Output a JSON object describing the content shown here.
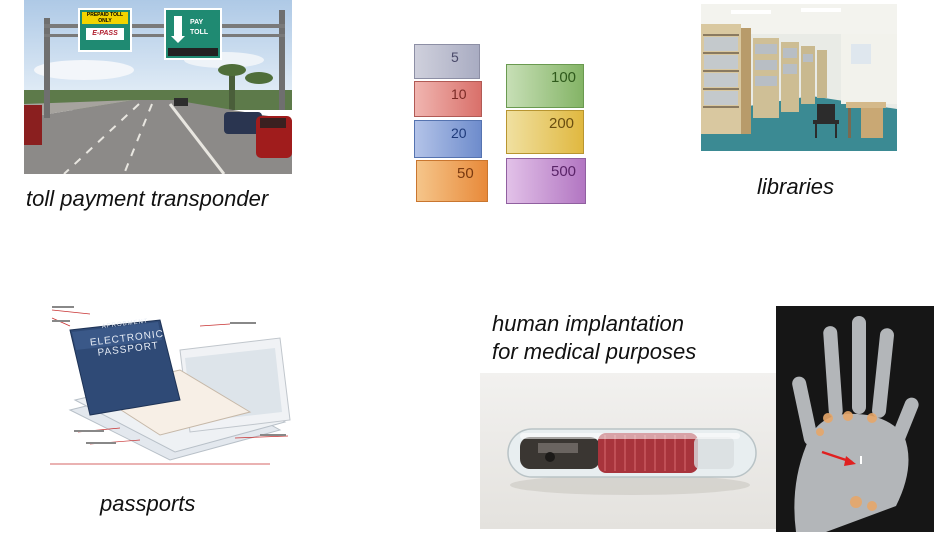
{
  "captions": {
    "toll": "toll payment transponder",
    "libraries": "libraries",
    "passports": "passports",
    "medical_line1": "human implantation",
    "medical_line2": "for medical purposes"
  },
  "toll_signs": {
    "prepaid_line1": "PREPAID TOLL",
    "prepaid_line2": "ONLY",
    "epass": "E-PASS",
    "pay_toll_line1": "PAY",
    "pay_toll_line2": "TOLL"
  },
  "banknotes": {
    "left": [
      "5",
      "10",
      "20",
      "50"
    ],
    "right": [
      "100",
      "200",
      "500"
    ]
  },
  "passport": {
    "header": "APROBMENT",
    "title_line1": "ELECTRONIC",
    "title_line2": "PASSPORT"
  },
  "colors": {
    "sky": "#c9dcef",
    "sign_green": "#1f8a72",
    "euro5": "#b9b9c9",
    "euro10": "#e5928c",
    "euro20": "#8ea5d8",
    "euro50": "#f0a65a",
    "euro100": "#8fbf7a",
    "euro200": "#e8c85a",
    "euro500": "#c58ad0"
  }
}
